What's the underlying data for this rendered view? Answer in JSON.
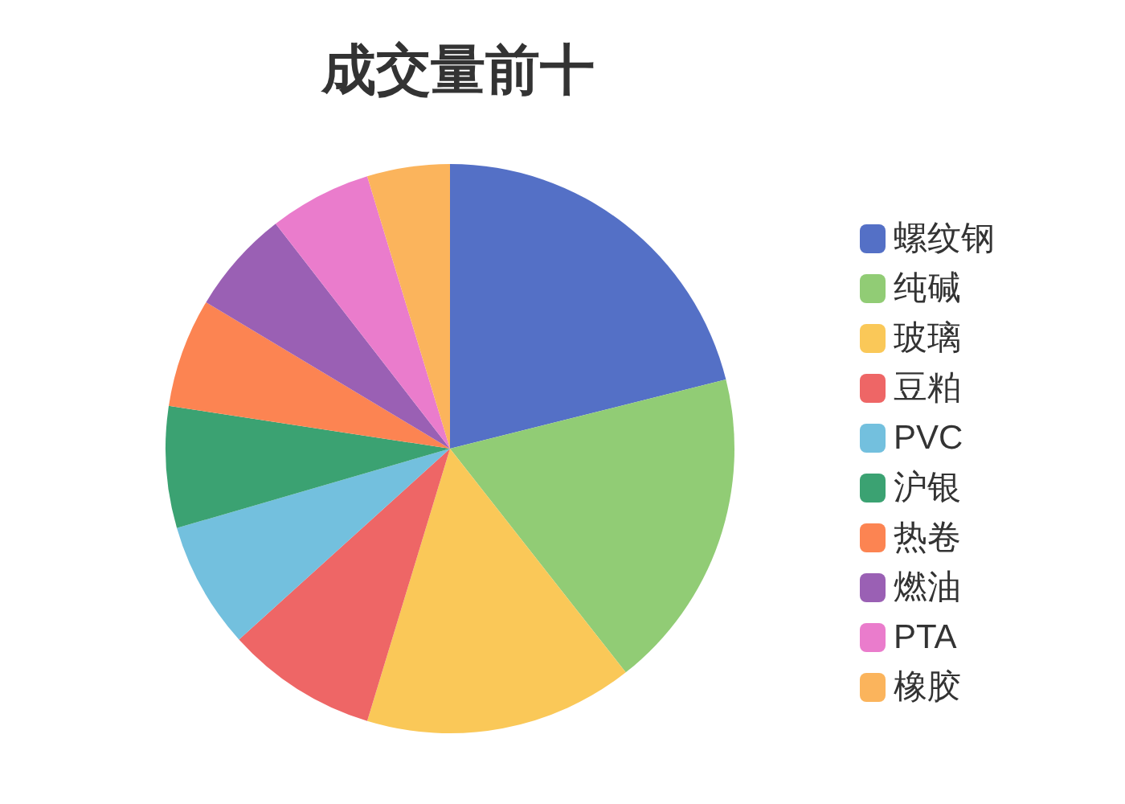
{
  "chart_data": {
    "type": "pie",
    "title": "成交量前十",
    "categories": [
      "螺纹钢",
      "纯碱",
      "玻璃",
      "豆粕",
      "PVC",
      "沪银",
      "热卷",
      "燃油",
      "PTA",
      "橡胶"
    ],
    "values": [
      21.1,
      18.3,
      15.3,
      8.6,
      7.2,
      6.9,
      6.2,
      5.9,
      5.8,
      4.7
    ],
    "colors": [
      "#5470c6",
      "#91cc75",
      "#fac858",
      "#ee6666",
      "#73c0de",
      "#3ba272",
      "#fc8452",
      "#9a60b4",
      "#ea7ccc",
      "#fbb45c"
    ],
    "legend": "right"
  }
}
